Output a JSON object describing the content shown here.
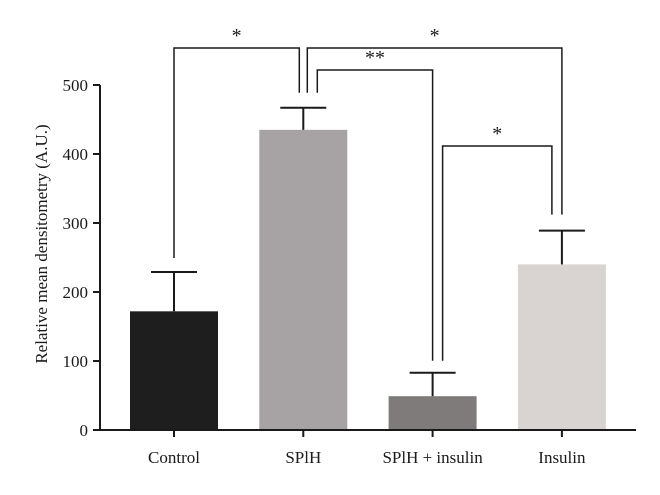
{
  "chart_data": {
    "type": "bar",
    "categories": [
      "Control",
      "SPlH",
      "SPlH + insulin",
      "Insulin"
    ],
    "values": [
      172,
      435,
      49,
      240
    ],
    "error_upper": [
      229,
      467,
      83,
      289
    ],
    "colors": [
      "#1e1e1e",
      "#a7a2a3",
      "#7f7b7a",
      "#d9d4d1"
    ],
    "ylabel": "Relative mean densitometry (A.U.)",
    "xlabel": "",
    "ylim": [
      0,
      500
    ],
    "yticks": [
      0,
      100,
      200,
      300,
      400,
      500
    ],
    "grid": false,
    "significance": [
      {
        "from": "Control",
        "to": "SPlH",
        "label": "*"
      },
      {
        "from": "SPlH",
        "to": "Insulin",
        "label": "*"
      },
      {
        "from": "SPlH",
        "to": "SPlH + insulin",
        "label": "**"
      },
      {
        "from": "SPlH + insulin",
        "to": "Insulin",
        "label": "*"
      }
    ]
  }
}
